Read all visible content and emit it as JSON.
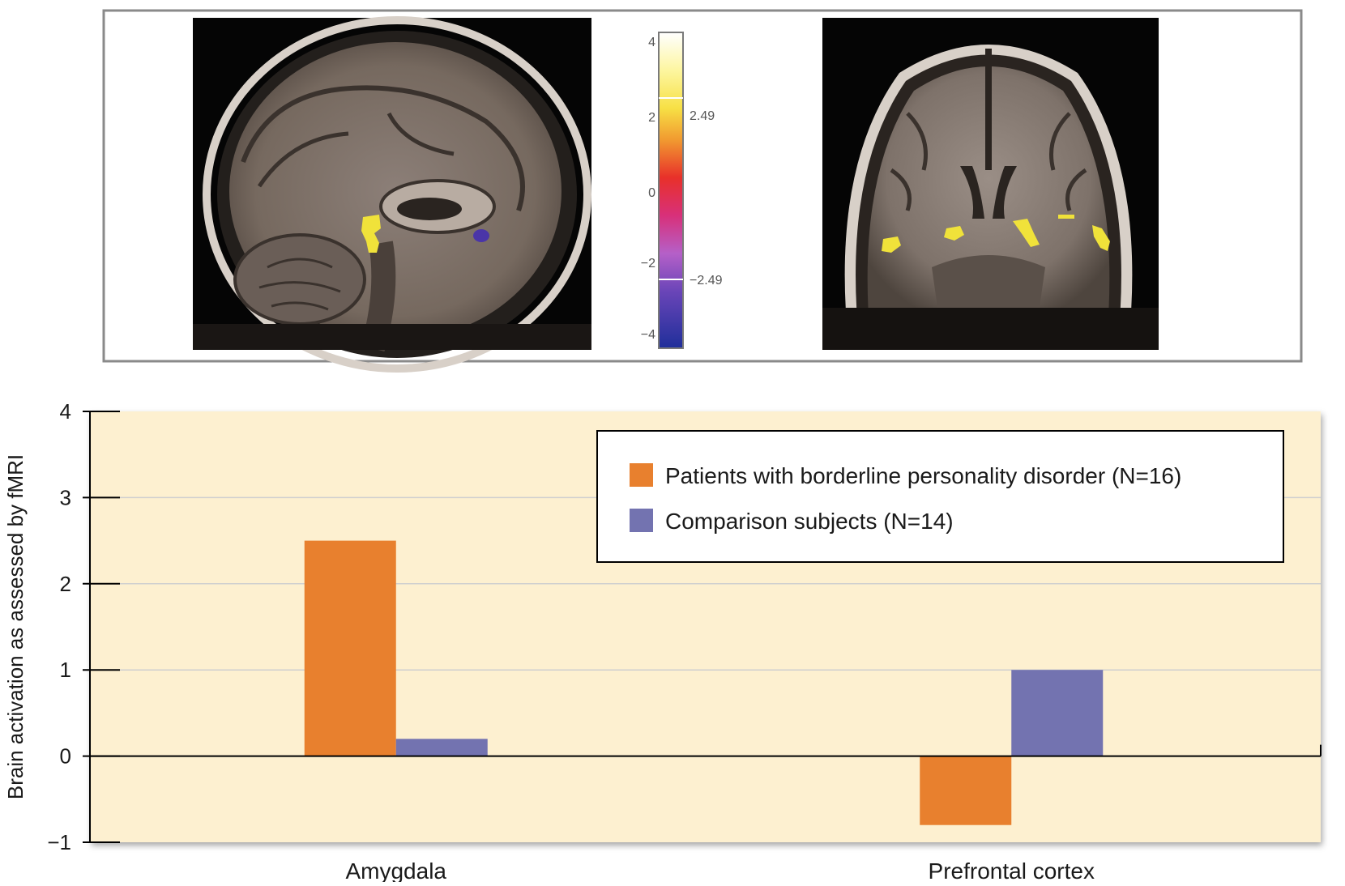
{
  "colorbar": {
    "ticks": [
      "4",
      "2",
      "0",
      "−2",
      "−4"
    ],
    "threshold_upper": "2.49",
    "threshold_lower": "−2.49"
  },
  "brain_images": [
    {
      "name": "sagittal-slice",
      "highlight_colors": [
        "#f0e23a",
        "#4a35a8"
      ]
    },
    {
      "name": "coronal-slice",
      "highlight_colors": [
        "#f0e23a"
      ]
    }
  ],
  "chart_data": {
    "type": "bar",
    "categories": [
      "Amygdala",
      "Prefrontal cortex"
    ],
    "series": [
      {
        "name": "Patients with borderline personality disorder (N=16)",
        "values": [
          2.5,
          -0.8
        ],
        "color": "#e8802e"
      },
      {
        "name": "Comparison subjects (N=14)",
        "values": [
          0.2,
          1.0
        ],
        "color": "#7373b0"
      }
    ],
    "ylabel": "Brain activation as assessed by fMRI",
    "xlabel": "",
    "ylim": [
      -1,
      4
    ],
    "yticks": [
      "4",
      "3",
      "2",
      "1",
      "0",
      "−1"
    ],
    "grid": true,
    "legend_position": "top-right",
    "plot_background": "#fdf0d0"
  }
}
